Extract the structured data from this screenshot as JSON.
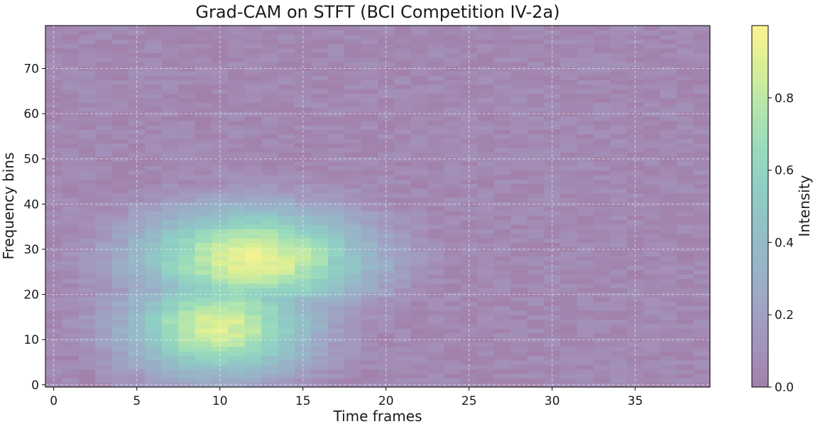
{
  "chart_data": {
    "type": "heatmap",
    "title": "Grad-CAM on STFT (BCI Competition IV-2a)",
    "xlabel": "Time frames",
    "ylabel": "Frequency bins",
    "xlim": [
      -0.5,
      39.5
    ],
    "ylim": [
      -0.5,
      79.5
    ],
    "x_bins": 40,
    "y_bins": 80,
    "x_ticks": [
      0,
      5,
      10,
      15,
      20,
      25,
      30,
      35
    ],
    "y_ticks": [
      0,
      10,
      20,
      30,
      40,
      50,
      60,
      70
    ],
    "grid": true,
    "colorbar": {
      "label": "Intensity",
      "range": [
        0.0,
        1.0
      ],
      "ticks": [
        0.0,
        0.2,
        0.4,
        0.6,
        0.8
      ],
      "colormap": "viridis",
      "alpha": 0.5
    },
    "hotspots": [
      {
        "time": 10,
        "freq": 13,
        "peak": 0.9,
        "spread_time": 4.0,
        "spread_freq": 8.0
      },
      {
        "time": 12,
        "freq": 28,
        "peak": 0.95,
        "spread_time": 5.0,
        "spread_freq": 8.0
      }
    ],
    "background_intensity": 0.05,
    "noise_amplitude": 0.05
  }
}
